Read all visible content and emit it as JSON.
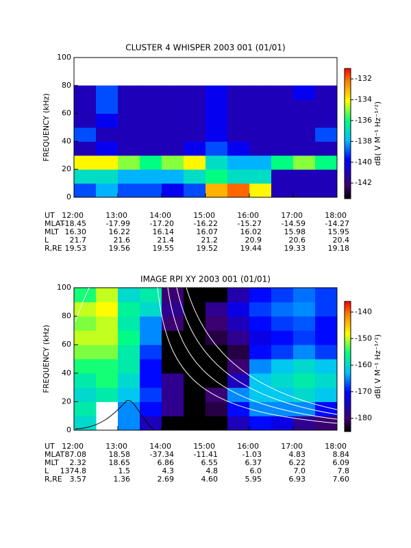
{
  "chart_data": [
    {
      "type": "heatmap",
      "title": "CLUSTER 4 WHISPER 2003 001 (01/01)",
      "ylabel": "FREQUENCY (kHz)",
      "xlabel": "UT",
      "xlim": [
        12,
        18
      ],
      "xticks": [
        {
          "value": 12,
          "label": "12:00"
        },
        {
          "value": 13,
          "label": "13:00"
        },
        {
          "value": 14,
          "label": "14:00"
        },
        {
          "value": 15,
          "label": "15:00"
        },
        {
          "value": 16,
          "label": "16:00"
        },
        {
          "value": 17,
          "label": "17:00"
        },
        {
          "value": 18,
          "label": "18:00"
        }
      ],
      "ylim": [
        0,
        100
      ],
      "yticks": [
        0,
        20,
        40,
        60,
        80,
        100
      ],
      "xbins": [
        12,
        12.5,
        13,
        13.5,
        14,
        14.5,
        15,
        15.5,
        16,
        16.5,
        17,
        17.5,
        18
      ],
      "ybins": [
        0,
        10,
        20,
        30,
        40,
        50,
        60,
        70,
        80
      ],
      "z": [
        [
          -139,
          -138,
          -139,
          -139,
          -140,
          -139,
          -133,
          -132,
          -134,
          -141,
          -141,
          -141
        ],
        [
          -137,
          -137,
          -138,
          -138,
          -138,
          -137,
          -136,
          -137,
          -137,
          -141,
          -141,
          -141
        ],
        [
          -134,
          -134,
          -135,
          -136,
          -135,
          -134,
          -137,
          -138,
          -138,
          -136,
          -135,
          -136
        ],
        [
          -141,
          -140,
          -141,
          -141,
          -141,
          -140,
          -139,
          -140,
          -141,
          -141,
          -141,
          -141
        ],
        [
          -139,
          -141,
          -141,
          -141,
          -141,
          -141,
          -140,
          -141,
          -141,
          -141,
          -141,
          -139
        ],
        [
          -141,
          -140,
          -141,
          -141,
          -141,
          -141,
          -140,
          -141,
          -141,
          -141,
          -141,
          -141
        ],
        [
          -141,
          -139,
          -141,
          -141,
          -141,
          -141,
          -140,
          -141,
          -141,
          -141,
          -141,
          -141
        ],
        [
          -141,
          -139,
          -141,
          -141,
          -141,
          -141,
          -140,
          -141,
          -141,
          -141,
          -140,
          -141
        ]
      ],
      "colormap": "rainbow",
      "zlim": [
        -143.5,
        -131
      ],
      "zticks": [
        -132,
        -134,
        -136,
        -138,
        -140,
        -142
      ],
      "zlabel": "dB( V M⁻¹ Hz⁻¹ᐟ²)",
      "ephemeris": [
        {
          "label": "MLAT",
          "values": [
            "-18.45",
            "-17.99",
            "-17.20",
            "-16.22",
            "-15.27",
            "-14.59",
            "-14.27"
          ]
        },
        {
          "label": "MLT",
          "values": [
            "16.30",
            "16.22",
            "16.14",
            "16.07",
            "16.02",
            "15.98",
            "15.95"
          ]
        },
        {
          "label": "L",
          "values": [
            "21.7",
            "21.6",
            "21.4",
            "21.2",
            "20.9",
            "20.6",
            "20.4"
          ]
        },
        {
          "label": "R,RE",
          "values": [
            "19.53",
            "19.56",
            "19.55",
            "19.52",
            "19.44",
            "19.33",
            "19.18"
          ]
        }
      ]
    },
    {
      "type": "heatmap",
      "title": "IMAGE RPI XY 2003 001 (01/01)",
      "ylabel": "FREQUENCY (kHz)",
      "xlabel": "UT",
      "xlim": [
        12,
        18
      ],
      "xticks": [
        {
          "value": 12,
          "label": "12:00"
        },
        {
          "value": 13,
          "label": "13:00"
        },
        {
          "value": 14,
          "label": "14:00"
        },
        {
          "value": 15,
          "label": "15:00"
        },
        {
          "value": 16,
          "label": "16:00"
        },
        {
          "value": 17,
          "label": "17:00"
        },
        {
          "value": 18,
          "label": "18:00"
        }
      ],
      "ylim": [
        0,
        100
      ],
      "yticks": [
        0,
        20,
        40,
        60,
        80,
        100
      ],
      "xbins": [
        12,
        12.5,
        13,
        13.5,
        14,
        14.5,
        15,
        15.5,
        16,
        16.5,
        17,
        17.5,
        18
      ],
      "ybins": [
        0,
        10,
        20,
        30,
        40,
        50,
        60,
        70,
        80,
        90,
        100
      ],
      "z": [
        [
          -160,
          null,
          -165,
          -175,
          -185,
          -185,
          -185,
          -175,
          -170,
          -172,
          -178,
          -180
        ],
        [
          -158,
          null,
          -165,
          -170,
          -178,
          -185,
          -182,
          -170,
          -165,
          -165,
          -165,
          -170
        ],
        [
          -160,
          -158,
          -162,
          -168,
          -178,
          -185,
          -180,
          -165,
          -162,
          -162,
          -160,
          -162
        ],
        [
          -158,
          -155,
          -160,
          -170,
          -178,
          -185,
          -185,
          -175,
          -162,
          -160,
          -158,
          -160
        ],
        [
          -155,
          -155,
          -158,
          -170,
          -185,
          -185,
          -185,
          -180,
          -165,
          -162,
          -160,
          -162
        ],
        [
          -152,
          -152,
          -158,
          -168,
          -185,
          -185,
          -185,
          -182,
          -170,
          -168,
          -165,
          -168
        ],
        [
          -150,
          -150,
          -156,
          -165,
          -185,
          -185,
          -182,
          -178,
          -172,
          -170,
          -168,
          -170
        ],
        [
          -152,
          -150,
          -158,
          -165,
          -180,
          -185,
          -180,
          -175,
          -170,
          -168,
          -167,
          -170
        ],
        [
          -150,
          -148,
          -157,
          -160,
          -178,
          -185,
          -178,
          -172,
          -168,
          -166,
          -165,
          -168
        ],
        [
          -155,
          -150,
          -160,
          -158,
          -180,
          -185,
          -185,
          -176,
          -170,
          -168,
          -166,
          -168
        ]
      ],
      "colormap": "rainbow",
      "zlim": [
        -185,
        -136
      ],
      "zticks": [
        -140,
        -150,
        -160,
        -170,
        -180
      ],
      "zlabel": "dB( V M⁻¹ Hz⁻¹ᐟ²)",
      "ephemeris": [
        {
          "label": "MLAT",
          "values": [
            "87.08",
            "18.58",
            "-37.34",
            "-11.41",
            "-1.03",
            "4.83",
            "8.84"
          ]
        },
        {
          "label": "MLT",
          "values": [
            "2.32",
            "18.65",
            "6.86",
            "6.55",
            "6.37",
            "6.22",
            "6.09"
          ]
        },
        {
          "label": "L",
          "values": [
            "1374.8",
            "1.5",
            "4.3",
            "4.8",
            "6.0",
            "7.0",
            "7.8"
          ]
        },
        {
          "label": "R,RE",
          "values": [
            "3.57",
            "1.36",
            "2.69",
            "4.60",
            "5.95",
            "6.93",
            "7.60"
          ]
        }
      ]
    }
  ]
}
